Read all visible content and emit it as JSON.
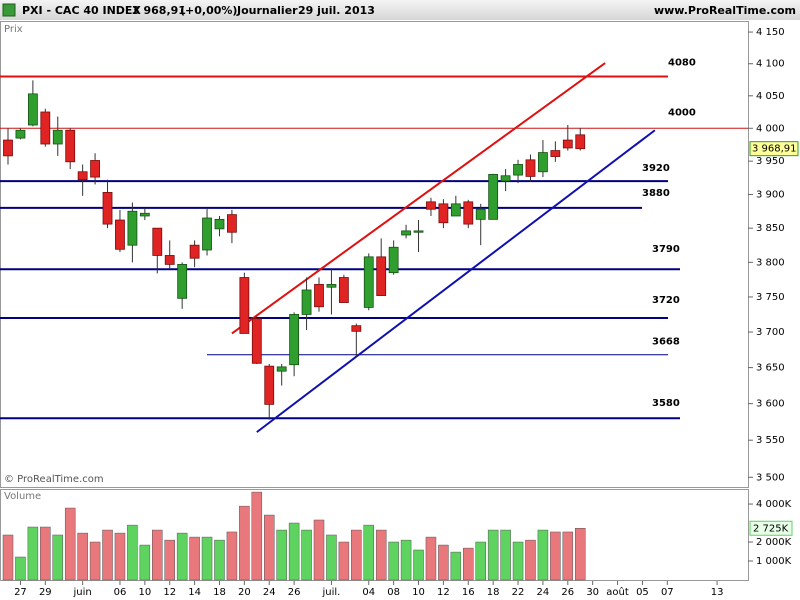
{
  "header": {
    "symbol": "PXI - CAC 40 INDEX",
    "change": "(+0,00%)",
    "period": "Journalier",
    "date": "29 juil. 2013",
    "site": "www.ProRealTime.com",
    "copyright": "© ProRealTime.com"
  },
  "chart_data": [
    {
      "type": "candlestick",
      "label": "Prix",
      "log": true,
      "x": [
        "2013-05-24",
        "2013-05-27",
        "2013-05-28",
        "2013-05-29",
        "2013-05-30",
        "2013-05-31",
        "2013-06-03",
        "2013-06-04",
        "2013-06-05",
        "2013-06-06",
        "2013-06-07",
        "2013-06-10",
        "2013-06-11",
        "2013-06-12",
        "2013-06-13",
        "2013-06-14",
        "2013-06-17",
        "2013-06-18",
        "2013-06-19",
        "2013-06-20",
        "2013-06-21",
        "2013-06-24",
        "2013-06-25",
        "2013-06-26",
        "2013-06-27",
        "2013-06-28",
        "2013-07-01",
        "2013-07-02",
        "2013-07-03",
        "2013-07-04",
        "2013-07-05",
        "2013-07-08",
        "2013-07-09",
        "2013-07-10",
        "2013-07-11",
        "2013-07-12",
        "2013-07-15",
        "2013-07-16",
        "2013-07-17",
        "2013-07-18",
        "2013-07-19",
        "2013-07-22",
        "2013-07-23",
        "2013-07-24",
        "2013-07-25",
        "2013-07-26",
        "2013-07-29"
      ],
      "open": [
        3982,
        3985,
        4005,
        4025,
        3976,
        3997,
        3934,
        3951,
        3903,
        3862,
        3825,
        3868,
        3850,
        3810,
        3748,
        3825,
        3818,
        3849,
        3870,
        3778,
        3719,
        3652,
        3645,
        3654,
        3725,
        3768,
        3764,
        3778,
        3709,
        3735,
        3808,
        3785,
        3840,
        3844,
        3889,
        3886,
        3868,
        3889,
        3863,
        3863,
        3920,
        3929,
        3952,
        3934,
        3966,
        3982,
        3990
      ],
      "high": [
        4000,
        4000,
        4074,
        4030,
        4018,
        4000,
        3945,
        3962,
        3922,
        3877,
        3888,
        3880,
        3850,
        3832,
        3800,
        3832,
        3880,
        3868,
        3877,
        3785,
        3722,
        3655,
        3655,
        3728,
        3778,
        3778,
        3790,
        3782,
        3712,
        3813,
        3835,
        3832,
        3855,
        3862,
        3895,
        3893,
        3898,
        3892,
        3886,
        3931,
        3938,
        3952,
        3960,
        3982,
        3980,
        4005,
        4000
      ],
      "low": [
        3945,
        3983,
        4003,
        3972,
        3958,
        3938,
        3898,
        3915,
        3850,
        3815,
        3800,
        3862,
        3784,
        3790,
        3733,
        3793,
        3810,
        3838,
        3828,
        3698,
        3655,
        3578,
        3625,
        3638,
        3703,
        3729,
        3725,
        3742,
        3665,
        3731,
        3752,
        3782,
        3835,
        3815,
        3868,
        3850,
        3868,
        3850,
        3825,
        3863,
        3905,
        3917,
        3919,
        3926,
        3949,
        3966,
        3966
      ],
      "close": [
        3958,
        3997,
        4053,
        3976,
        3997,
        3949,
        3922,
        3926,
        3856,
        3819,
        3875,
        3872,
        3810,
        3797,
        3797,
        3806,
        3865,
        3863,
        3844,
        3698,
        3656,
        3599,
        3651,
        3725,
        3760,
        3736,
        3768,
        3742,
        3701,
        3808,
        3752,
        3822,
        3846,
        3846,
        3878,
        3858,
        3886,
        3856,
        3878,
        3930,
        3928,
        3945,
        3927,
        3963,
        3957,
        3970,
        3968.91
      ],
      "close_labels": [
        null,
        null,
        null,
        null,
        null,
        null,
        null,
        null,
        null,
        null,
        null,
        null,
        null,
        null,
        null,
        null,
        null,
        null,
        null,
        null,
        null,
        null,
        null,
        null,
        null,
        null,
        null,
        null,
        null,
        null,
        null,
        null,
        null,
        null,
        null,
        null,
        null,
        null,
        null,
        null,
        null,
        null,
        null,
        null,
        null,
        null,
        "3 968,91"
      ],
      "colors": {
        "up": "#2f9e2f",
        "down": "#e02424"
      },
      "ylim": [
        3487,
        4166
      ],
      "yticks": [
        {
          "value": 3500,
          "label": "3 500"
        },
        {
          "value": 3550,
          "label": "3 550"
        },
        {
          "value": 3600,
          "label": "3 600"
        },
        {
          "value": 3650,
          "label": "3 650"
        },
        {
          "value": 3700,
          "label": "3 700"
        },
        {
          "value": 3750,
          "label": "3 750"
        },
        {
          "value": 3800,
          "label": "3 800"
        },
        {
          "value": 3850,
          "label": "3 850"
        },
        {
          "value": 3900,
          "label": "3 900"
        },
        {
          "value": 3950,
          "label": "3 950"
        },
        {
          "value": 4000,
          "label": "4 000"
        },
        {
          "value": 4050,
          "label": "4 050"
        },
        {
          "value": 4100,
          "label": "4 100"
        },
        {
          "value": 4150,
          "label": "4 150"
        }
      ],
      "levels": [
        {
          "value": 4080,
          "color": "#e01010"
        },
        {
          "value": 4000,
          "color": "#c81414"
        },
        {
          "value": 3920,
          "color": "#000080"
        },
        {
          "value": 3880,
          "color": "#000080"
        },
        {
          "value": 3790,
          "color": "#000080"
        },
        {
          "value": 3720,
          "color": "#000080"
        },
        {
          "value": 3668,
          "color": "#000080"
        },
        {
          "value": 3580,
          "color": "#000080"
        }
      ],
      "trendlines": [
        {
          "color": "#e01010",
          "x": [
            "2013-06-19",
            "2013-07-31"
          ],
          "y": [
            3698,
            4101
          ]
        },
        {
          "color": "#1010b0",
          "x": [
            "2013-06-21",
            "2013-08-06"
          ],
          "y": [
            3561,
            3997
          ]
        }
      ]
    },
    {
      "type": "bar",
      "label": "Volume",
      "values": [
        2370,
        1210,
        2790,
        2790,
        2370,
        3790,
        2470,
        2000,
        2630,
        2470,
        2890,
        1840,
        2630,
        2100,
        2470,
        2260,
        2260,
        2100,
        2530,
        3890,
        4630,
        3420,
        2630,
        3000,
        2630,
        3160,
        2370,
        2000,
        2630,
        2890,
        2630,
        2000,
        2100,
        1580,
        2260,
        1840,
        1470,
        1680,
        2000,
        2630,
        2630,
        2000,
        2100,
        2630,
        2530,
        2530,
        2725
      ],
      "value_labels": [
        null,
        null,
        null,
        null,
        null,
        null,
        null,
        null,
        null,
        null,
        null,
        null,
        null,
        null,
        null,
        null,
        null,
        null,
        null,
        null,
        null,
        null,
        null,
        null,
        null,
        null,
        null,
        null,
        null,
        null,
        null,
        null,
        null,
        null,
        null,
        null,
        null,
        null,
        null,
        null,
        null,
        null,
        null,
        null,
        null,
        null,
        "2 725K"
      ],
      "colors": {
        "up": "#5fd35f",
        "down": "#e8787c"
      },
      "ylim": [
        0,
        4740
      ],
      "yticks": [
        {
          "value": 1000,
          "label": "1 000K"
        },
        {
          "value": 2000,
          "label": "2 000K"
        },
        {
          "value": 4000,
          "label": "4 000K"
        }
      ],
      "xticks": [
        {
          "value": "2013-05-27",
          "label": "27"
        },
        {
          "value": "2013-05-29",
          "label": "29"
        },
        {
          "value": "2013-06-03",
          "label": "juin"
        },
        {
          "value": "2013-06-06",
          "label": "06"
        },
        {
          "value": "2013-06-10",
          "label": "10"
        },
        {
          "value": "2013-06-12",
          "label": "12"
        },
        {
          "value": "2013-06-14",
          "label": "14"
        },
        {
          "value": "2013-06-18",
          "label": "18"
        },
        {
          "value": "2013-06-20",
          "label": "20"
        },
        {
          "value": "2013-06-24",
          "label": "24"
        },
        {
          "value": "2013-06-26",
          "label": "26"
        },
        {
          "value": "2013-07-01",
          "label": "juil."
        },
        {
          "value": "2013-07-04",
          "label": "04"
        },
        {
          "value": "2013-07-08",
          "label": "08"
        },
        {
          "value": "2013-07-10",
          "label": "10"
        },
        {
          "value": "2013-07-12",
          "label": "12"
        },
        {
          "value": "2013-07-16",
          "label": "16"
        },
        {
          "value": "2013-07-18",
          "label": "18"
        },
        {
          "value": "2013-07-22",
          "label": "22"
        },
        {
          "value": "2013-07-24",
          "label": "24"
        },
        {
          "value": "2013-07-26",
          "label": "26"
        },
        {
          "value": "2013-07-30",
          "label": "30"
        },
        {
          "value": "2013-08-01",
          "label": "août"
        },
        {
          "value": "2013-08-05",
          "label": "05"
        },
        {
          "value": "2013-08-07",
          "label": "07"
        },
        {
          "value": "2013-08-13",
          "label": "13"
        }
      ]
    }
  ]
}
